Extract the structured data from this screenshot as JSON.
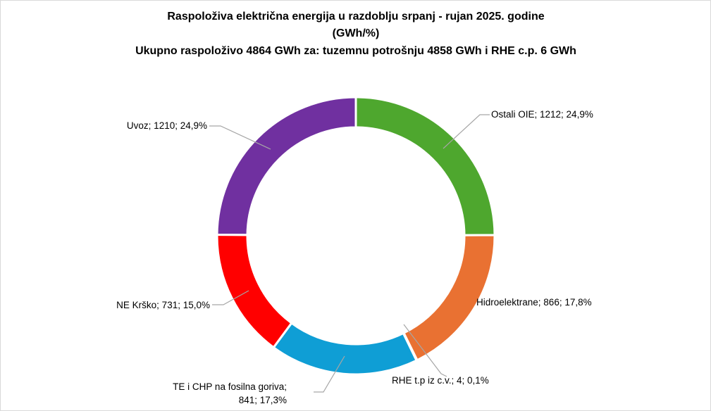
{
  "chart_data": {
    "type": "pie",
    "variant": "doughnut",
    "title_lines": [
      "Raspoloživa električna energija u razdoblju srpanj - rujan 2025. godine",
      "(GWh/%)",
      "Ukupno raspoloživo 4864 GWh za: tuzemnu potrošnju 4858 GWh i RHE c.p. 6 GWh"
    ],
    "slices": [
      {
        "name": "Ostali OIE",
        "value": 1212,
        "percent": "24,9%",
        "label_lines": [
          "Ostali OIE; 1212; 24,9%"
        ],
        "color": "#4EA72E"
      },
      {
        "name": "Hidroelektrane",
        "value": 866,
        "percent": "17,8%",
        "label_lines": [
          "Hidroelektrane; 866; 17,8%"
        ],
        "color": "#E97132"
      },
      {
        "name": "RHE t.p iz c.v.",
        "value": 4,
        "percent": "0,1%",
        "label_lines": [
          "RHE t.p iz c.v.; 4; 0,1%"
        ],
        "color": "#196B24"
      },
      {
        "name": "TE i CHP na fosilna goriva",
        "value": 841,
        "percent": "17,3%",
        "label_lines": [
          "TE i CHP na fosilna goriva;",
          "841; 17,3%"
        ],
        "color": "#0F9ED5"
      },
      {
        "name": "NE Krško",
        "value": 731,
        "percent": "15,0%",
        "label_lines": [
          "NE Krško; 731; 15,0%"
        ],
        "color": "#FF0000"
      },
      {
        "name": "Uvoz",
        "value": 1210,
        "percent": "24,9%",
        "label_lines": [
          "Uvoz; 1210; 24,9%"
        ],
        "color": "#7030A0"
      }
    ],
    "total": 4864,
    "units": "GWh",
    "legend": "none",
    "slice_border_color": "#FFFFFF"
  }
}
